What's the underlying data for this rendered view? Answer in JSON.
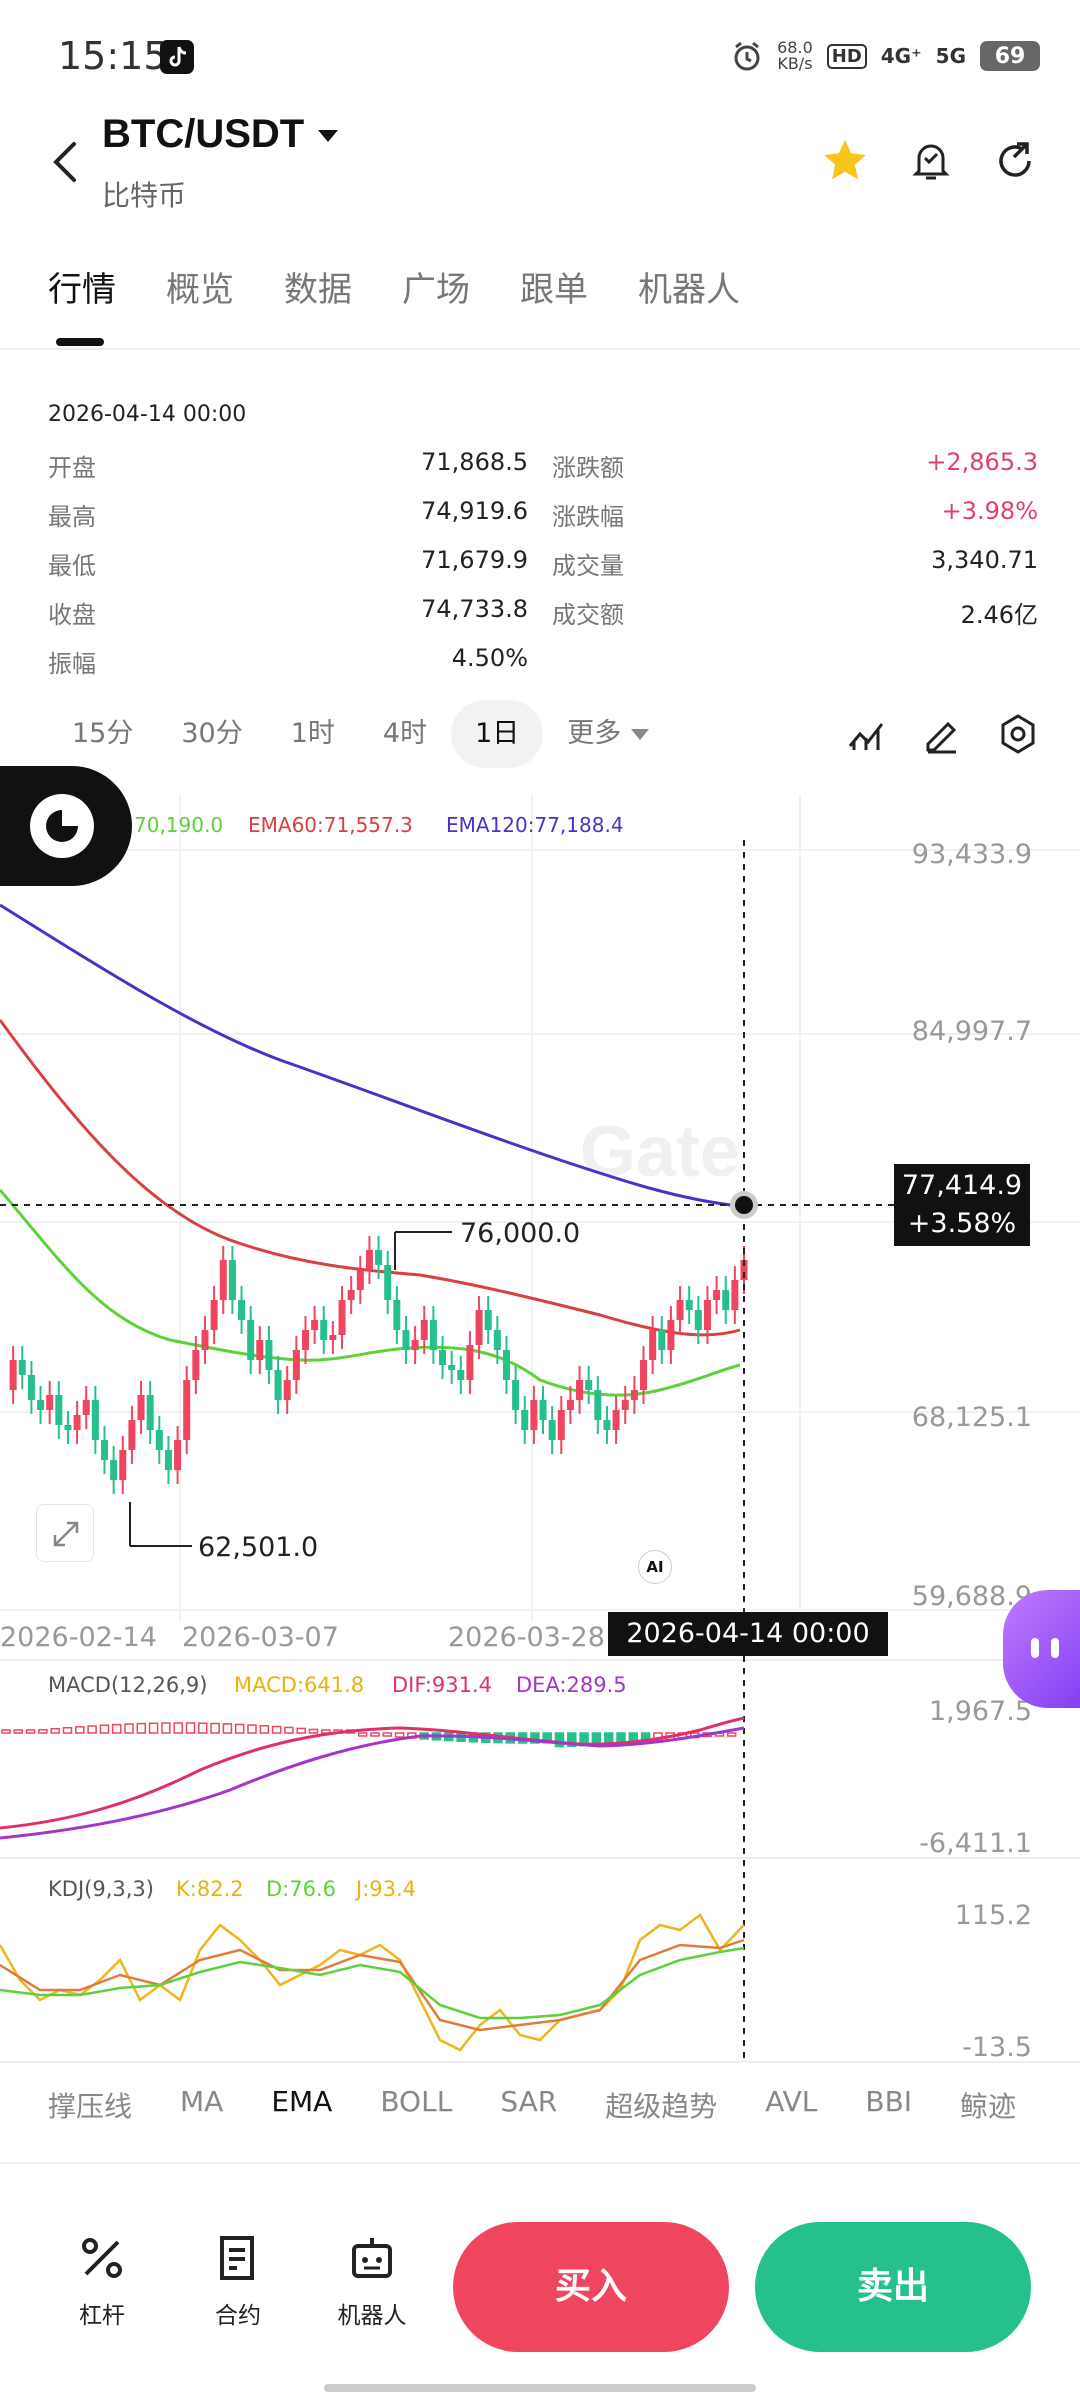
{
  "status_bar": {
    "time": "15:15",
    "net_speed_value": "68.0",
    "net_speed_unit": "KB/s",
    "hd": "HD",
    "signal_1": "4G⁺",
    "signal_2": "5G",
    "battery": "69"
  },
  "header": {
    "pair": "BTC/USDT",
    "name": "比特币"
  },
  "tabs": [
    "行情",
    "概览",
    "数据",
    "广场",
    "跟单",
    "机器人"
  ],
  "info": {
    "date": "2026-04-14 00:00",
    "rows": [
      {
        "l1": "开盘",
        "v1": "71,868.5",
        "l2": "涨跌额",
        "v2": "+2,865.3"
      },
      {
        "l1": "最高",
        "v1": "74,919.6",
        "l2": "涨跌幅",
        "v2": "+3.98%"
      },
      {
        "l1": "最低",
        "v1": "71,679.9",
        "l2": "成交量",
        "v2": "3,340.71"
      },
      {
        "l1": "收盘",
        "v1": "74,733.8",
        "l2": "成交额",
        "v2": "2.46亿"
      }
    ],
    "amp_label": "振幅",
    "amp_value": "4.50%",
    "positive_color": "#e0416a"
  },
  "periods": [
    "15分",
    "30分",
    "1时",
    "4时",
    "1日",
    "更多"
  ],
  "periods_active": "1日",
  "ema_legend": {
    "ema20": "70,190.0",
    "ema60": "EMA60:71,557.3",
    "ema120": "EMA120:77,188.4",
    "colors": {
      "ema20": "#5dd13c",
      "ema60": "#d94040",
      "ema120": "#4a32c8"
    }
  },
  "price_axis": [
    "93,433.9",
    "84,997.7",
    "68,125.1",
    "59,688.9"
  ],
  "watermark": "Gate",
  "annotations": {
    "high": "76,000.0",
    "low": "62,501.0"
  },
  "cursor": {
    "price": "77,414.9",
    "change": "+3.58%",
    "date": "2026-04-14 00:00"
  },
  "date_axis": [
    "2026-02-14",
    "2026-03-07",
    "2026-03-28"
  ],
  "ai_label": "AI",
  "macd": {
    "title": "MACD(12,26,9)",
    "macd": "MACD:641.8",
    "dif": "DIF:931.4",
    "dea": "DEA:289.5",
    "axis_top": "1,967.5",
    "axis_bottom": "-6,411.1"
  },
  "kdj": {
    "title": "KDJ(9,3,3)",
    "k": "K:82.2",
    "d": "D:76.6",
    "j": "J:93.4",
    "axis_top": "115.2",
    "axis_bottom": "-13.5"
  },
  "indicators": [
    "撑压线",
    "MA",
    "EMA",
    "BOLL",
    "SAR",
    "超级趋势",
    "AVL",
    "BBI",
    "鲸迹"
  ],
  "indicators_active": "EMA",
  "bottom_actions": {
    "leverage": "杠杆",
    "contract": "合约",
    "bot": "机器人"
  },
  "buy_label": "买入",
  "sell_label": "卖出",
  "colors": {
    "up": "#f0455e",
    "down": "#26c08c",
    "accent": "#f5c518"
  }
}
